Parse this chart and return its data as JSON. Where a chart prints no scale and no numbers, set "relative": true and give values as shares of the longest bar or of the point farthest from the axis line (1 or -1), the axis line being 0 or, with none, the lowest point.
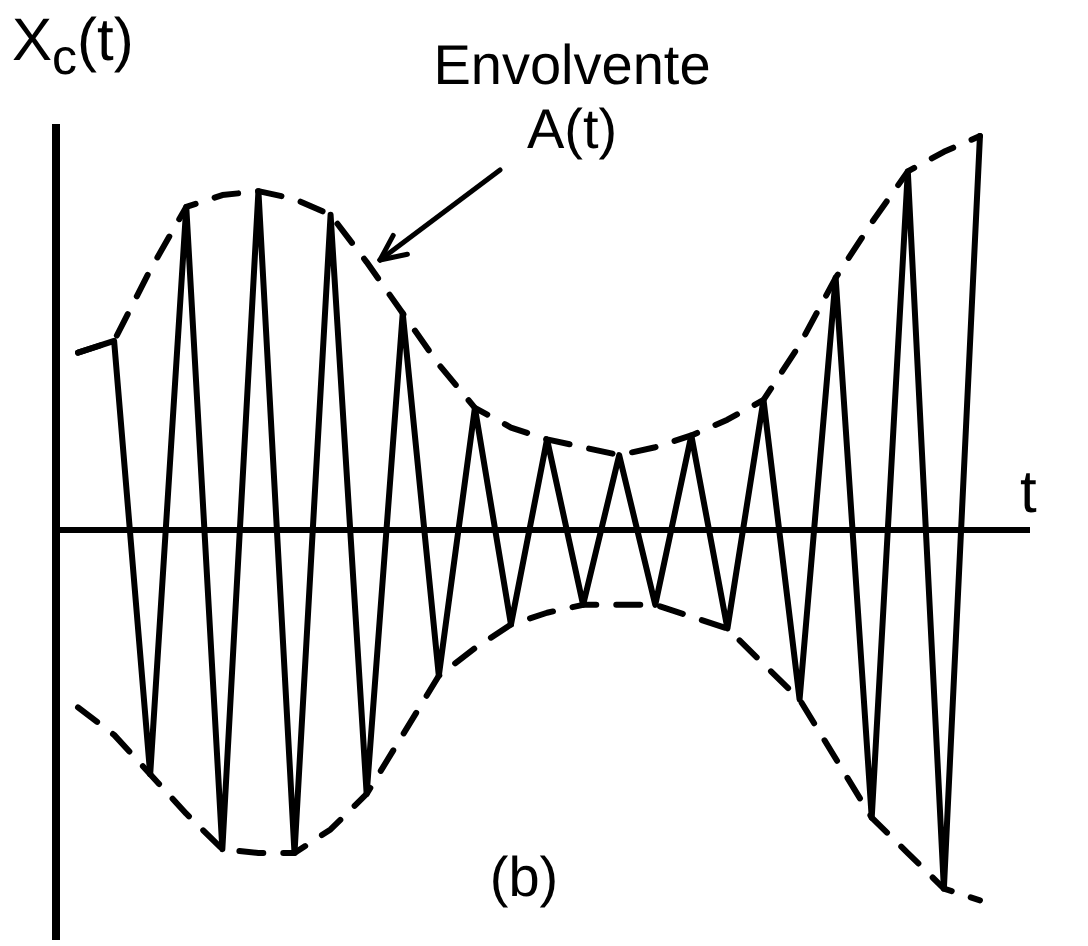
{
  "chart_data": {
    "type": "line",
    "relative": true,
    "ylabel": "X$_{c}$(t)",
    "xlabel": "t",
    "categories": [
      null,
      null,
      null,
      null,
      null,
      null,
      null,
      null,
      null,
      null,
      null,
      null,
      null,
      null,
      null,
      null,
      null,
      null,
      null,
      null,
      null,
      null,
      null,
      null,
      null,
      null
    ],
    "annotations": [
      "Envolvente A(t)",
      "(b)"
    ],
    "series": [
      {
        "color": "#000000",
        "line_style": "solid",
        "values": [
          0.45,
          0.48,
          -0.62,
          0.82,
          -0.81,
          0.86,
          -0.82,
          0.8,
          -0.67,
          0.55,
          -0.37,
          0.31,
          -0.24,
          0.23,
          -0.19,
          0.19,
          -0.19,
          0.24,
          -0.25,
          0.33,
          -0.43,
          0.64,
          -0.73,
          0.91,
          -0.91,
          1.0
        ]
      },
      {
        "color": "#000000",
        "line_style": "dashed",
        "values": [
          0.45,
          0.48,
          0.66,
          0.82,
          0.85,
          0.86,
          0.84,
          0.8,
          0.68,
          0.55,
          0.42,
          0.31,
          0.26,
          0.23,
          0.21,
          0.19,
          0.21,
          0.24,
          0.28,
          0.33,
          0.47,
          0.64,
          0.78,
          0.91,
          0.96,
          1.0
        ]
      },
      {
        "color": "#000000",
        "line_style": "dashed",
        "values": [
          -0.45,
          -0.52,
          -0.62,
          -0.72,
          -0.81,
          -0.82,
          -0.82,
          -0.76,
          -0.67,
          -0.52,
          -0.37,
          -0.3,
          -0.24,
          -0.21,
          -0.19,
          -0.19,
          -0.19,
          -0.22,
          -0.25,
          -0.34,
          -0.43,
          -0.58,
          -0.73,
          -0.82,
          -0.91,
          -0.94
        ]
      }
    ]
  }
}
